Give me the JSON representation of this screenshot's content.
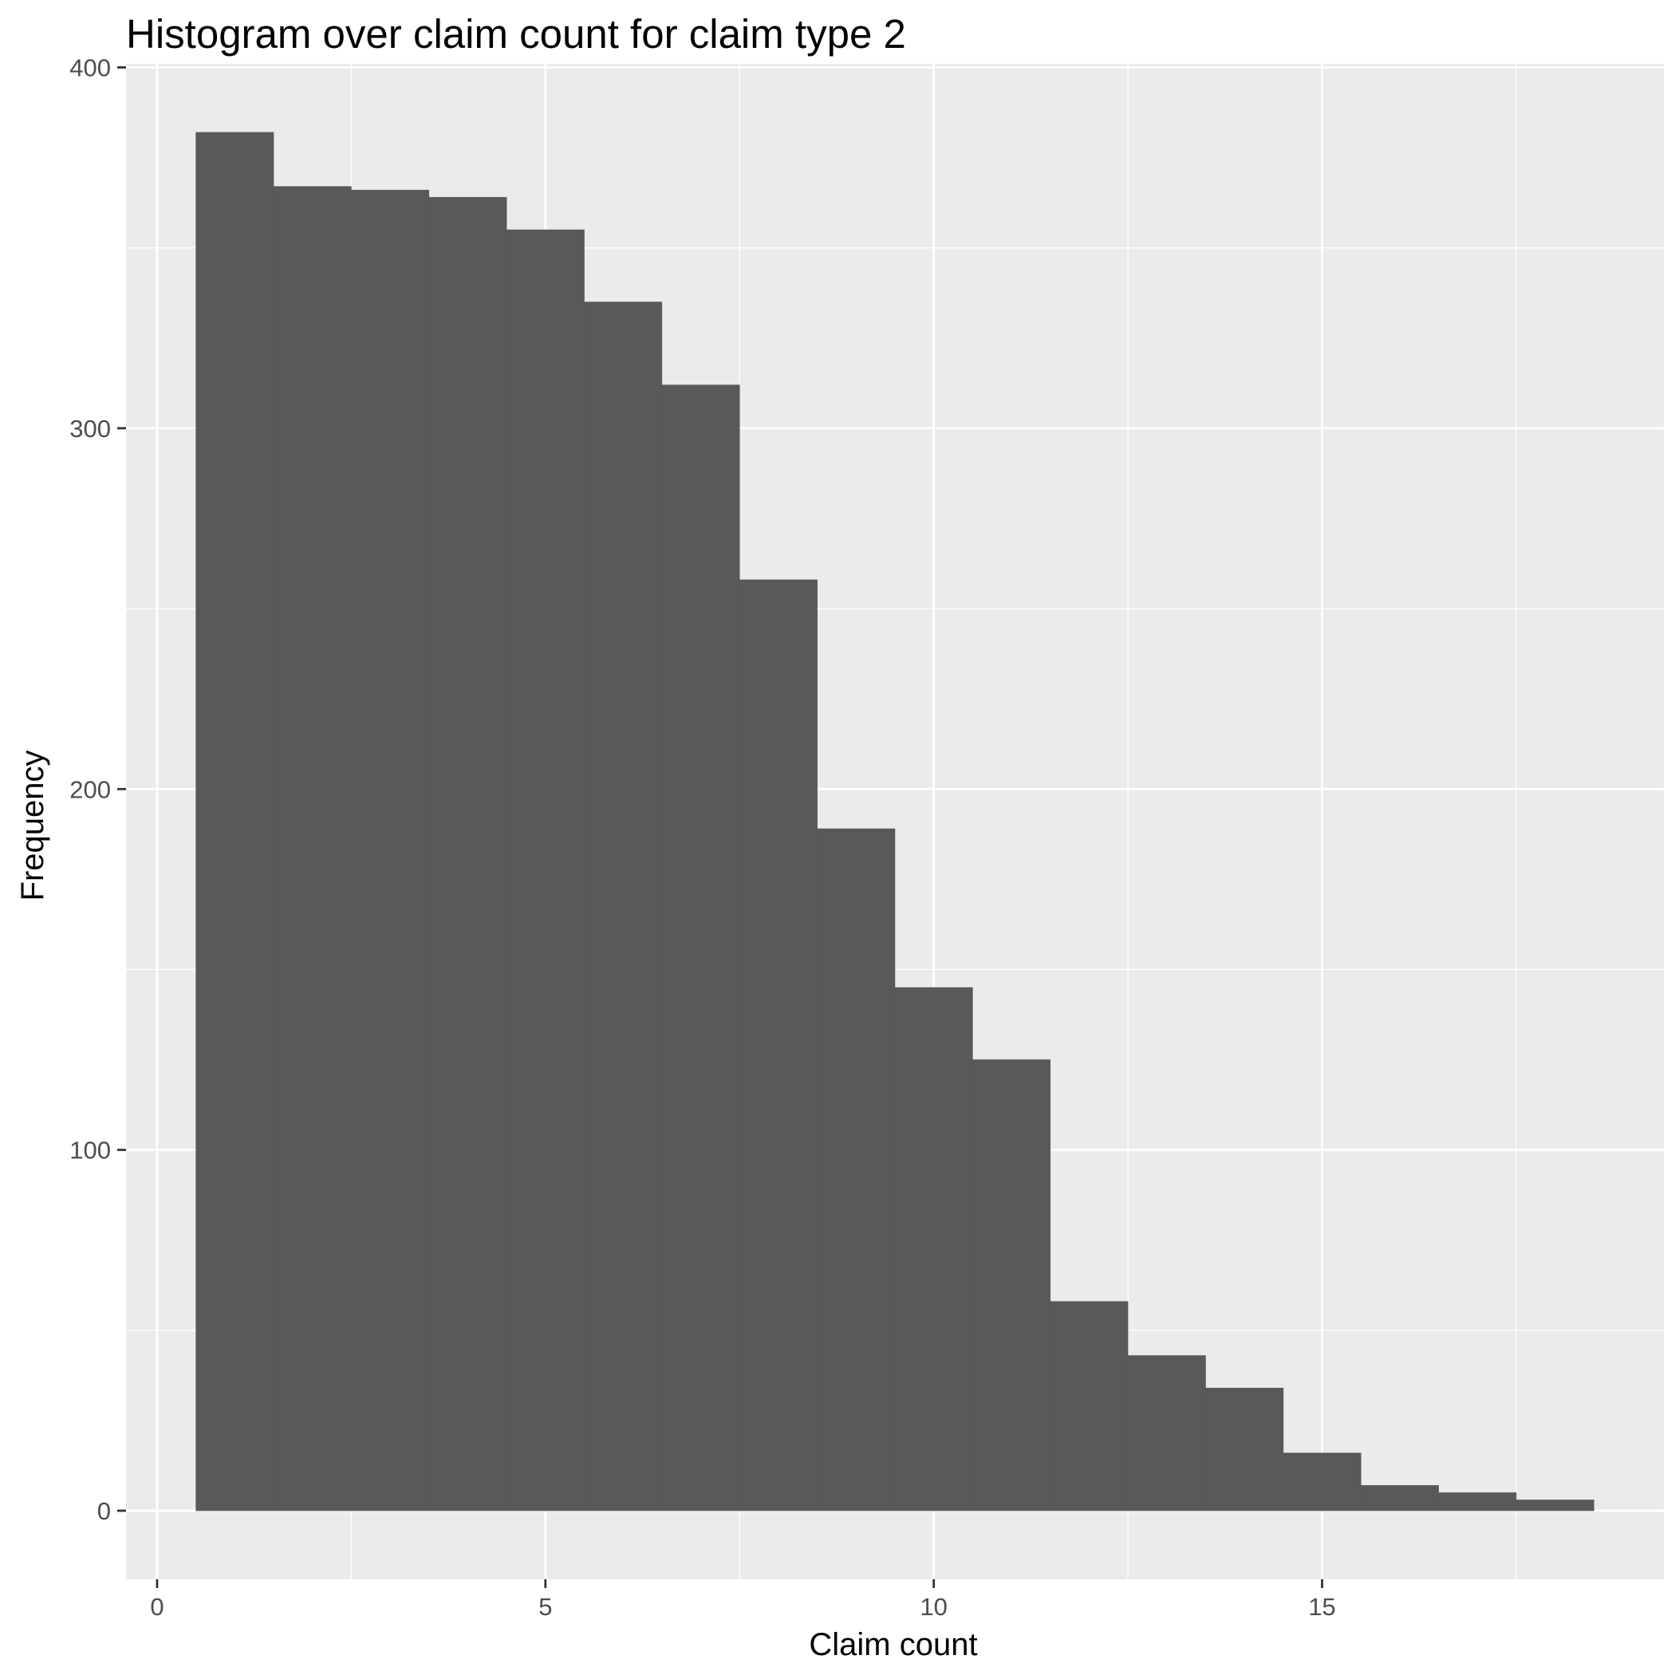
{
  "chart_data": {
    "type": "bar",
    "title": "Histogram over claim count for claim type 2",
    "xlabel": "Claim count",
    "ylabel": "Frequency",
    "categories": [
      1,
      2,
      3,
      4,
      5,
      6,
      7,
      8,
      9,
      10,
      11,
      12,
      13,
      14,
      15,
      16,
      17,
      18
    ],
    "values": [
      382,
      367,
      366,
      364,
      355,
      335,
      312,
      258,
      189,
      145,
      125,
      58,
      43,
      34,
      16,
      7,
      5,
      3
    ],
    "bin_width": 1,
    "xlim": [
      -0.4,
      19.4
    ],
    "ylim": [
      -19,
      401
    ],
    "x_ticks": [
      0,
      5,
      10,
      15
    ],
    "y_ticks": [
      0,
      100,
      200,
      300,
      400
    ],
    "grid": true,
    "legend": "none",
    "colors": {
      "bar_fill": "#595959",
      "panel_background": "#EBEBEB",
      "grid_line": "#FFFFFF",
      "tick_label": "#4D4D4D",
      "tick_mark": "#333333",
      "text": "#000000"
    }
  }
}
